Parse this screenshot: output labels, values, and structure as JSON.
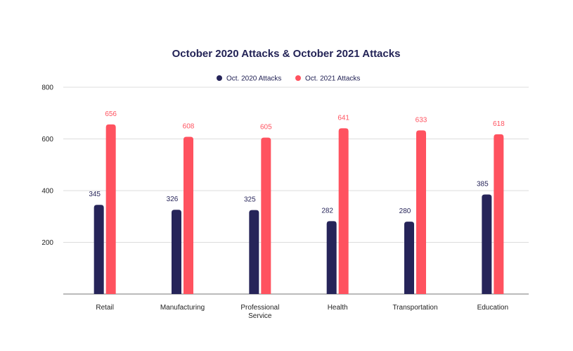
{
  "chart_data": {
    "type": "bar",
    "title": "October 2020 Attacks & October 2021 Attacks",
    "xlabel": "",
    "ylabel": "",
    "categories": [
      [
        "Retail"
      ],
      [
        "Manufacturing"
      ],
      [
        "Professional",
        "Service"
      ],
      [
        "Health"
      ],
      [
        "Transportation"
      ],
      [
        "Education"
      ]
    ],
    "series": [
      {
        "name": "Oct. 2020 Attacks",
        "color": "#262459",
        "values": [
          345,
          326,
          325,
          282,
          280,
          385
        ]
      },
      {
        "name": "Oct. 2021 Attacks",
        "color": "#FF525F",
        "values": [
          656,
          608,
          605,
          641,
          633,
          618
        ]
      }
    ],
    "yticks": [
      200,
      400,
      600,
      800
    ],
    "ylim": [
      0,
      800
    ],
    "grid": true,
    "legend": "top-center"
  }
}
